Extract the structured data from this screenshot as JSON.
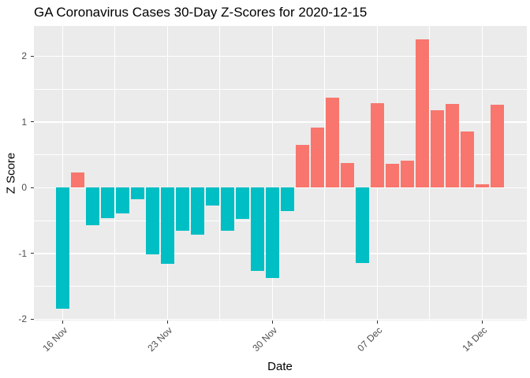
{
  "chart_data": {
    "type": "bar",
    "title": "GA Coronavirus Cases 30-Day Z-Scores for 2020-12-15",
    "xlabel": "Date",
    "ylabel": "Z Score",
    "dates": [
      "2020-11-16",
      "2020-11-17",
      "2020-11-18",
      "2020-11-19",
      "2020-11-20",
      "2020-11-21",
      "2020-11-22",
      "2020-11-23",
      "2020-11-24",
      "2020-11-25",
      "2020-11-26",
      "2020-11-27",
      "2020-11-28",
      "2020-11-29",
      "2020-11-30",
      "2020-12-01",
      "2020-12-02",
      "2020-12-03",
      "2020-12-04",
      "2020-12-05",
      "2020-12-06",
      "2020-12-07",
      "2020-12-08",
      "2020-12-09",
      "2020-12-10",
      "2020-12-11",
      "2020-12-12",
      "2020-12-13",
      "2020-12-14",
      "2020-12-15"
    ],
    "values": [
      -1.84,
      0.23,
      -0.57,
      -0.46,
      -0.39,
      -0.17,
      -1.01,
      -1.16,
      -0.66,
      -0.72,
      -0.27,
      -0.66,
      -0.48,
      -1.27,
      -1.37,
      -0.36,
      0.65,
      0.91,
      1.37,
      0.38,
      -1.15,
      1.29,
      0.36,
      0.41,
      2.26,
      1.18,
      1.27,
      0.85,
      0.05,
      1.26
    ],
    "x_tick_labels": [
      "16 Nov",
      "23 Nov",
      "30 Nov",
      "07 Dec",
      "14 Dec"
    ],
    "x_tick_day_index": [
      0,
      7,
      14,
      21,
      28
    ],
    "x_minor_day_index": [
      3.5,
      10.5,
      17.5,
      24.5
    ],
    "y_ticks": [
      -2,
      -1,
      0,
      1,
      2
    ],
    "y_tick_labels": [
      "-2",
      "-1",
      "0",
      "1",
      "2"
    ],
    "y_minor": [
      -1.5,
      -0.5,
      0.5,
      1.5
    ],
    "ylim": [
      -2.02,
      2.46
    ],
    "grid": true,
    "legend_position": "none",
    "colors": {
      "positive_fill": "#F8766D",
      "negative_fill": "#00BFC4",
      "panel_background": "#EBEBEB",
      "grid_line": "#FFFFFF",
      "tick_mark": "#333333",
      "tick_text": "#4D4D4D",
      "title_text": "#000000"
    }
  }
}
